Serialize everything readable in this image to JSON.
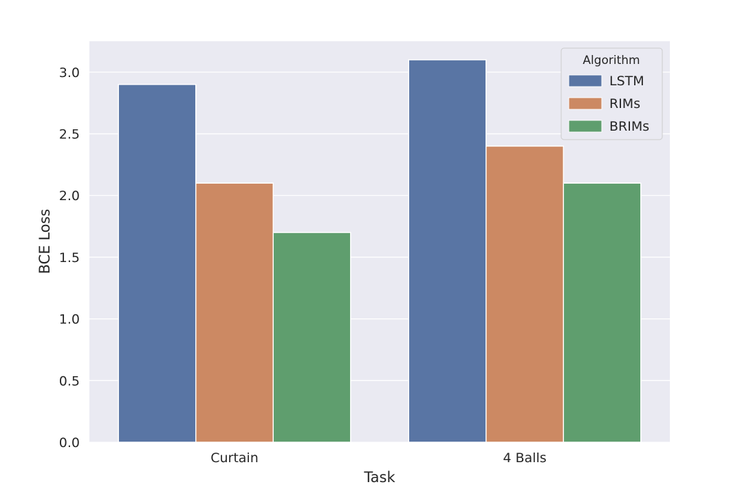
{
  "chart_data": {
    "type": "bar",
    "title": "",
    "xlabel": "Task",
    "ylabel": "BCE Loss",
    "categories": [
      "Curtain",
      "4 Balls"
    ],
    "series": [
      {
        "name": "LSTM",
        "values": [
          2.9,
          3.1
        ],
        "color": "#5975a4"
      },
      {
        "name": "RIMs",
        "values": [
          2.1,
          2.4
        ],
        "color": "#cc8963"
      },
      {
        "name": "BRIMs",
        "values": [
          1.7,
          2.1
        ],
        "color": "#5f9e6e"
      }
    ],
    "ylim": [
      0,
      3.25
    ],
    "yticks": [
      "0.0",
      "0.5",
      "1.0",
      "1.5",
      "2.0",
      "2.5",
      "3.0"
    ],
    "grid": true,
    "legend": {
      "title": "Algorithm",
      "placement": "top-right"
    },
    "background": "#eaeaf2",
    "gridcolor": "#ffffff"
  }
}
